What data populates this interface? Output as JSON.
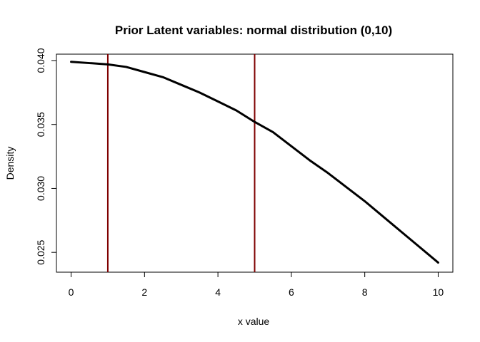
{
  "chart_data": {
    "type": "line",
    "title": "Prior Latent variables: normal distribution (0,10)",
    "xlabel": "x value",
    "ylabel": "Density",
    "xlim": [
      -0.4,
      10.4
    ],
    "ylim": [
      0.02345,
      0.0405
    ],
    "x_ticks": [
      0,
      2,
      4,
      6,
      8,
      10
    ],
    "x_tick_labels": [
      "0",
      "2",
      "4",
      "6",
      "8",
      "10"
    ],
    "y_ticks": [
      0.025,
      0.03,
      0.035,
      0.04
    ],
    "y_tick_labels": [
      "0.025",
      "0.030",
      "0.035",
      "0.040"
    ],
    "grid": false,
    "series": [
      {
        "color": "#000000",
        "x": [
          0,
          0.5,
          1,
          1.5,
          2,
          2.5,
          3,
          3.5,
          4,
          4.5,
          5,
          5.5,
          6,
          6.5,
          7,
          7.5,
          8,
          8.5,
          9,
          9.5,
          10
        ],
        "y": [
          0.0399,
          0.0398,
          0.0397,
          0.0395,
          0.0391,
          0.0387,
          0.0381,
          0.0375,
          0.0368,
          0.0361,
          0.0352,
          0.0344,
          0.0333,
          0.0322,
          0.0312,
          0.0301,
          0.029,
          0.0278,
          0.0266,
          0.0254,
          0.0242
        ]
      }
    ],
    "vlines": [
      {
        "x": 1,
        "color": "#7f0000"
      },
      {
        "x": 5,
        "color": "#7f0000"
      }
    ]
  }
}
